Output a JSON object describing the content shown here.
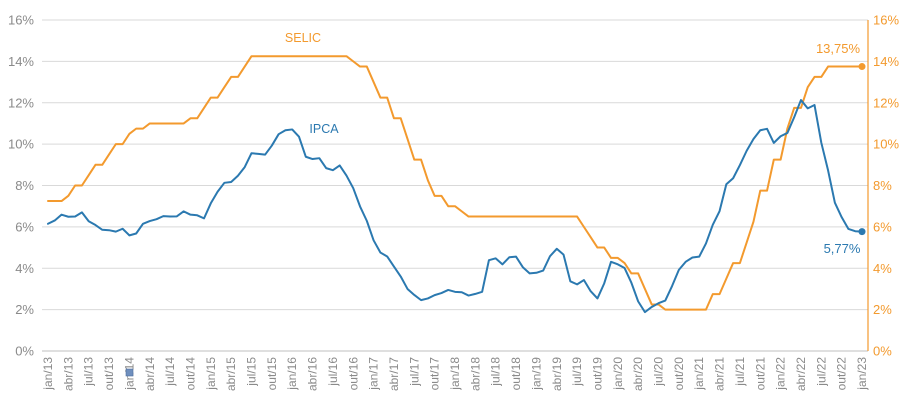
{
  "chart_data": {
    "type": "line",
    "ylim": [
      0,
      16
    ],
    "grid": true,
    "x": [
      "jan/13",
      "fev/13",
      "mar/13",
      "abr/13",
      "mai/13",
      "jun/13",
      "jul/13",
      "ago/13",
      "set/13",
      "out/13",
      "nov/13",
      "dez/13",
      "jan/14",
      "fev/14",
      "mar/14",
      "abr/14",
      "mai/14",
      "jun/14",
      "jul/14",
      "ago/14",
      "set/14",
      "out/14",
      "nov/14",
      "dez/14",
      "jan/15",
      "fev/15",
      "mar/15",
      "abr/15",
      "mai/15",
      "jun/15",
      "jul/15",
      "ago/15",
      "set/15",
      "out/15",
      "nov/15",
      "dez/15",
      "jan/16",
      "fev/16",
      "mar/16",
      "abr/16",
      "mai/16",
      "jun/16",
      "jul/16",
      "ago/16",
      "set/16",
      "out/16",
      "nov/16",
      "dez/16",
      "jan/17",
      "fev/17",
      "mar/17",
      "abr/17",
      "mai/17",
      "jun/17",
      "jul/17",
      "ago/17",
      "set/17",
      "out/17",
      "nov/17",
      "dez/17",
      "jan/18",
      "fev/18",
      "mar/18",
      "abr/18",
      "mai/18",
      "jun/18",
      "jul/18",
      "ago/18",
      "set/18",
      "out/18",
      "nov/18",
      "dez/18",
      "jan/19",
      "fev/19",
      "mar/19",
      "abr/19",
      "mai/19",
      "jun/19",
      "jul/19",
      "ago/19",
      "set/19",
      "out/19",
      "nov/19",
      "dez/19",
      "jan/20",
      "fev/20",
      "mar/20",
      "abr/20",
      "mai/20",
      "jun/20",
      "jul/20",
      "ago/20",
      "set/20",
      "out/20",
      "nov/20",
      "dez/20",
      "jan/21",
      "fev/21",
      "mar/21",
      "abr/21",
      "mai/21",
      "jun/21",
      "jul/21",
      "ago/21",
      "set/21",
      "out/21",
      "nov/21",
      "dez/21",
      "jan/22",
      "fev/22",
      "mar/22",
      "abr/22",
      "mai/22",
      "jun/22",
      "jul/22",
      "ago/22",
      "set/22",
      "out/22",
      "nov/22",
      "dez/22",
      "jan/23"
    ],
    "axes": {
      "x": {
        "color": "#8A8A8A",
        "ticks": [
          "jan/13",
          "abr/13",
          "jul/13",
          "out/13",
          "jan/14",
          "abr/14",
          "jul/14",
          "out/14",
          "jan/15",
          "abr/15",
          "jul/15",
          "out/15",
          "jan/16",
          "abr/16",
          "jul/16",
          "out/16",
          "jan/17",
          "abr/17",
          "jul/17",
          "out/17",
          "jan/18",
          "abr/18",
          "jul/18",
          "out/18",
          "jan/19",
          "abr/19",
          "jul/19",
          "out/19",
          "jan/20",
          "abr/20",
          "jul/20",
          "out/20",
          "jan/21",
          "abr/21",
          "jul/21",
          "out/21",
          "jan/22",
          "abr/22",
          "jul/22",
          "out/22",
          "jan/23"
        ]
      },
      "left": {
        "color": "#8A8A8A",
        "ticks": [
          "0%",
          "2%",
          "4%",
          "6%",
          "8%",
          "10%",
          "12%",
          "14%",
          "16%"
        ]
      },
      "right": {
        "color": "#F39A2E",
        "ticks": [
          "0%",
          "2%",
          "4%",
          "6%",
          "8%",
          "10%",
          "12%",
          "14%",
          "16%"
        ]
      }
    },
    "series": [
      {
        "name": "SELIC",
        "color": "#F39A2E",
        "end_label": "13,75%",
        "values": [
          7.25,
          7.25,
          7.25,
          7.5,
          8.0,
          8.0,
          8.5,
          9.0,
          9.0,
          9.5,
          10.0,
          10.0,
          10.5,
          10.75,
          10.75,
          11.0,
          11.0,
          11.0,
          11.0,
          11.0,
          11.0,
          11.25,
          11.25,
          11.75,
          12.25,
          12.25,
          12.75,
          13.25,
          13.25,
          13.75,
          14.25,
          14.25,
          14.25,
          14.25,
          14.25,
          14.25,
          14.25,
          14.25,
          14.25,
          14.25,
          14.25,
          14.25,
          14.25,
          14.25,
          14.25,
          14.0,
          13.75,
          13.75,
          13.0,
          12.25,
          12.25,
          11.25,
          11.25,
          10.25,
          9.25,
          9.25,
          8.25,
          7.5,
          7.5,
          7.0,
          7.0,
          6.75,
          6.5,
          6.5,
          6.5,
          6.5,
          6.5,
          6.5,
          6.5,
          6.5,
          6.5,
          6.5,
          6.5,
          6.5,
          6.5,
          6.5,
          6.5,
          6.5,
          6.5,
          6.0,
          5.5,
          5.0,
          5.0,
          4.5,
          4.5,
          4.25,
          3.75,
          3.75,
          3.0,
          2.25,
          2.25,
          2.0,
          2.0,
          2.0,
          2.0,
          2.0,
          2.0,
          2.0,
          2.75,
          2.75,
          3.5,
          4.25,
          4.25,
          5.25,
          6.25,
          7.75,
          7.75,
          9.25,
          9.25,
          10.75,
          11.75,
          11.75,
          12.75,
          13.25,
          13.25,
          13.75,
          13.75,
          13.75,
          13.75,
          13.75,
          13.75
        ]
      },
      {
        "name": "IPCA",
        "color": "#2B79B0",
        "end_label": "5,77%",
        "values": [
          6.15,
          6.31,
          6.59,
          6.49,
          6.5,
          6.7,
          6.27,
          6.09,
          5.86,
          5.84,
          5.77,
          5.91,
          5.59,
          5.68,
          6.15,
          6.28,
          6.37,
          6.52,
          6.5,
          6.51,
          6.75,
          6.59,
          6.56,
          6.41,
          7.14,
          7.7,
          8.13,
          8.17,
          8.47,
          8.89,
          9.56,
          9.53,
          9.49,
          9.93,
          10.48,
          10.67,
          10.71,
          10.36,
          9.39,
          9.28,
          9.32,
          8.84,
          8.74,
          8.97,
          8.48,
          7.87,
          6.99,
          6.29,
          5.35,
          4.76,
          4.57,
          4.08,
          3.6,
          3.0,
          2.71,
          2.46,
          2.54,
          2.7,
          2.8,
          2.95,
          2.86,
          2.84,
          2.68,
          2.76,
          2.86,
          4.39,
          4.48,
          4.19,
          4.53,
          4.56,
          4.05,
          3.75,
          3.78,
          3.89,
          4.58,
          4.94,
          4.66,
          3.37,
          3.22,
          3.43,
          2.89,
          2.54,
          3.27,
          4.31,
          4.19,
          4.01,
          3.3,
          2.4,
          1.88,
          2.13,
          2.31,
          2.44,
          3.14,
          3.92,
          4.31,
          4.52,
          4.56,
          5.2,
          6.1,
          6.76,
          8.06,
          8.35,
          8.99,
          9.68,
          10.25,
          10.67,
          10.74,
          10.06,
          10.38,
          10.54,
          11.3,
          12.13,
          11.73,
          11.89,
          10.07,
          8.73,
          7.17,
          6.47,
          5.9,
          5.79,
          5.77
        ]
      }
    ]
  }
}
